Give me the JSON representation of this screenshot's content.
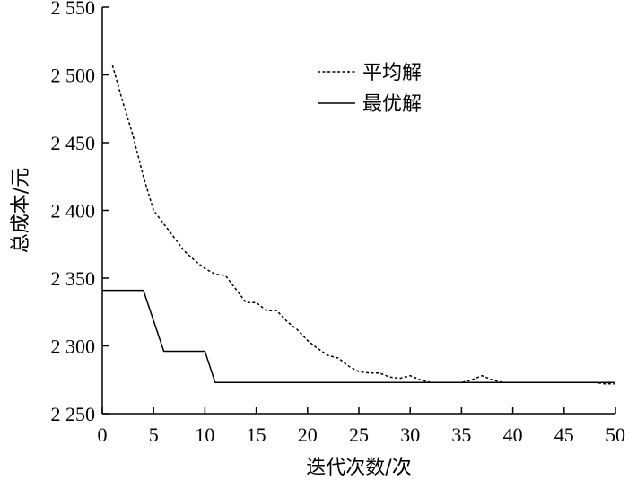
{
  "chart_data": {
    "type": "line",
    "xlabel": "迭代次数/次",
    "ylabel": "总成本/元",
    "xlim": [
      0,
      50
    ],
    "ylim": [
      2250,
      2550
    ],
    "x_ticks": [
      0,
      5,
      10,
      15,
      20,
      25,
      30,
      35,
      40,
      45,
      50
    ],
    "y_ticks": [
      2250,
      2300,
      2350,
      2400,
      2450,
      2500,
      2550
    ],
    "y_tick_labels": [
      "2 250",
      "2 300",
      "2 350",
      "2 400",
      "2 450",
      "2 500",
      "2 550"
    ],
    "grid": false,
    "legend_position": "top-right",
    "series": [
      {
        "name": "平均解",
        "style": "dotted",
        "color": "#000000",
        "x": [
          1,
          2,
          3,
          4,
          5,
          6,
          7,
          8,
          9,
          10,
          11,
          12,
          13,
          14,
          15,
          16,
          17,
          18,
          19,
          20,
          21,
          22,
          23,
          24,
          25,
          26,
          27,
          28,
          29,
          30,
          31,
          32,
          33,
          34,
          35,
          36,
          37,
          38,
          39,
          40,
          41,
          42,
          43,
          44,
          45,
          46,
          47,
          48,
          49,
          50
        ],
        "values": [
          2507,
          2480,
          2455,
          2425,
          2400,
          2390,
          2380,
          2370,
          2363,
          2357,
          2353,
          2352,
          2342,
          2332,
          2332,
          2326,
          2326,
          2318,
          2312,
          2304,
          2298,
          2293,
          2291,
          2285,
          2281,
          2280,
          2280,
          2277,
          2276,
          2278,
          2275,
          2273,
          2273,
          2273,
          2273,
          2275,
          2278,
          2275,
          2273,
          2273,
          2273,
          2273,
          2273,
          2273,
          2273,
          2273,
          2273,
          2273,
          2272,
          2272
        ]
      },
      {
        "name": "最优解",
        "style": "solid",
        "color": "#000000",
        "x": [
          0,
          4,
          6,
          10,
          11,
          50
        ],
        "values": [
          2341,
          2341,
          2296,
          2296,
          2273,
          2273
        ]
      }
    ]
  }
}
